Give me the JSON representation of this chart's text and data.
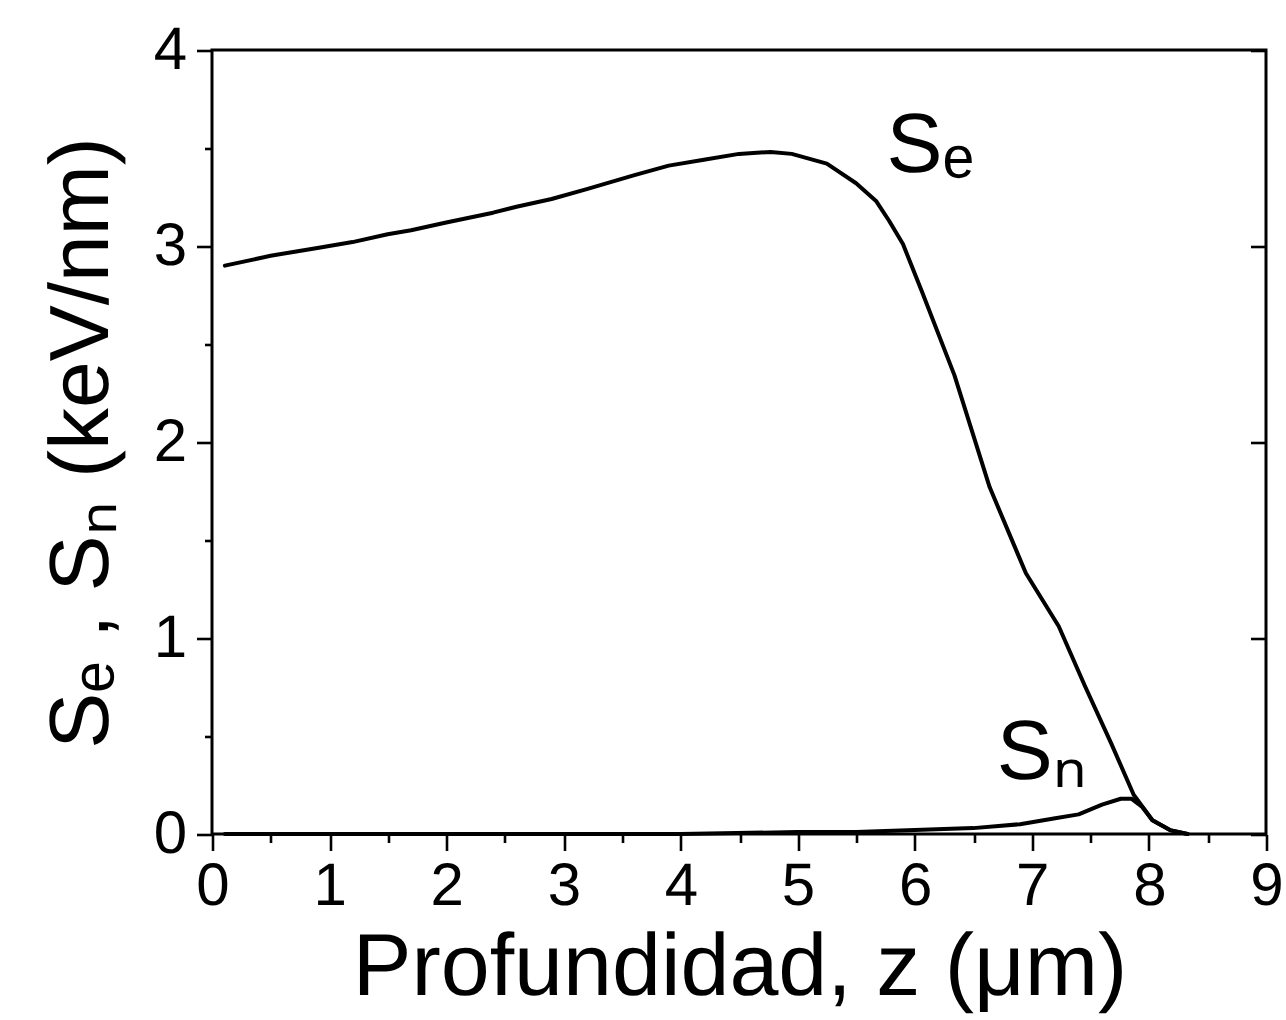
{
  "chart_data": {
    "type": "line",
    "xlabel": "Profundidad, z (μm)",
    "ylabel": "Sₑ , Sₙ (keV/nm)",
    "xlim": [
      0,
      9
    ],
    "ylim": [
      0,
      4
    ],
    "xticks": [
      0,
      {
        "value": 0.5,
        "label": null
      },
      1,
      {
        "value": 1.5,
        "label": null
      },
      2,
      {
        "value": 2.5,
        "label": null
      },
      3,
      {
        "value": 3.5,
        "label": null
      },
      4,
      {
        "value": 4.5,
        "label": null
      },
      5,
      {
        "value": 5.5,
        "label": null
      },
      6,
      {
        "value": 6.5,
        "label": null
      },
      7,
      {
        "value": 7.5,
        "label": null
      },
      8,
      {
        "value": 8.5,
        "label": null
      },
      9
    ],
    "yticks": [
      0,
      {
        "value": 0.5,
        "label": null
      },
      1,
      {
        "value": 1.5,
        "label": null
      },
      2,
      {
        "value": 2.5,
        "label": null
      },
      3,
      {
        "value": 3.5,
        "label": null
      },
      4
    ],
    "grid": false,
    "legend": false,
    "line_style": "solid",
    "series": [
      {
        "name": "Sₑ",
        "color": "#000000",
        "x": [
          0.11,
          0.5,
          0.9,
          1.2,
          1.5,
          1.7,
          2.0,
          2.4,
          2.6,
          2.9,
          3.2,
          3.6,
          3.9,
          4.2,
          4.5,
          4.77,
          4.95,
          5.25,
          5.5,
          5.67,
          5.78,
          5.9,
          6.06,
          6.34,
          6.64,
          6.95,
          7.23,
          7.45,
          7.68,
          7.87,
          8.03,
          8.18,
          8.33
        ],
        "values": [
          2.9,
          2.95,
          2.99,
          3.02,
          3.06,
          3.08,
          3.12,
          3.17,
          3.2,
          3.24,
          3.29,
          3.36,
          3.41,
          3.44,
          3.47,
          3.48,
          3.47,
          3.42,
          3.32,
          3.23,
          3.13,
          3.01,
          2.77,
          2.34,
          1.77,
          1.33,
          1.06,
          0.76,
          0.46,
          0.2,
          0.07,
          0.02,
          0
        ]
      },
      {
        "name": "Sₙ",
        "color": "#000000",
        "x": [
          0.11,
          1,
          2,
          3,
          4,
          5,
          5.5,
          6,
          6.5,
          6.9,
          7.2,
          7.4,
          7.6,
          7.76,
          7.85,
          7.94,
          8.03,
          8.18,
          8.33
        ],
        "values": [
          0,
          0,
          0,
          0,
          0,
          0.01,
          0.01,
          0.02,
          0.03,
          0.05,
          0.08,
          0.1,
          0.15,
          0.18,
          0.18,
          0.14,
          0.07,
          0.02,
          0
        ]
      }
    ]
  }
}
